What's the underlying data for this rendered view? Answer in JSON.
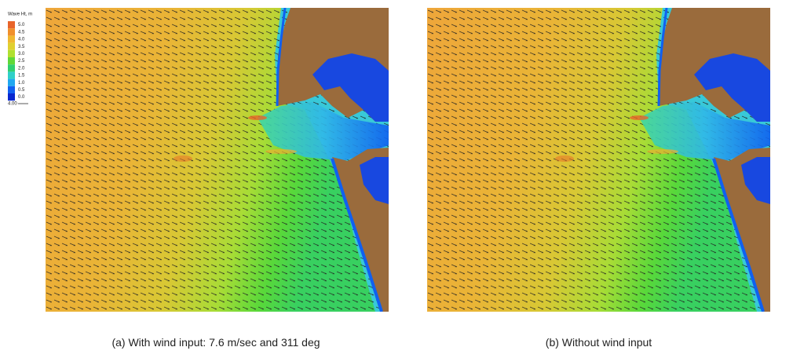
{
  "legend": {
    "title": "Wave Ht, m",
    "levels": [
      {
        "label": "5.0",
        "color": "#e8642a"
      },
      {
        "label": "4.5",
        "color": "#f0902c"
      },
      {
        "label": "4.0",
        "color": "#f0b830"
      },
      {
        "label": "3.5",
        "color": "#e0d030"
      },
      {
        "label": "3.0",
        "color": "#b0e030"
      },
      {
        "label": "2.5",
        "color": "#60d838"
      },
      {
        "label": "2.0",
        "color": "#30d070"
      },
      {
        "label": "1.5",
        "color": "#30d0c8"
      },
      {
        "label": "1.0",
        "color": "#20a8f0"
      },
      {
        "label": "0.5",
        "color": "#1060f0"
      },
      {
        "label": "0.0",
        "color": "#0828d0"
      }
    ],
    "arrow_label": "4.00"
  },
  "panels": [
    {
      "caption": "(a) With wind input: 7.6 m/sec and 311 deg"
    },
    {
      "caption": "(b) Without wind input"
    }
  ]
}
